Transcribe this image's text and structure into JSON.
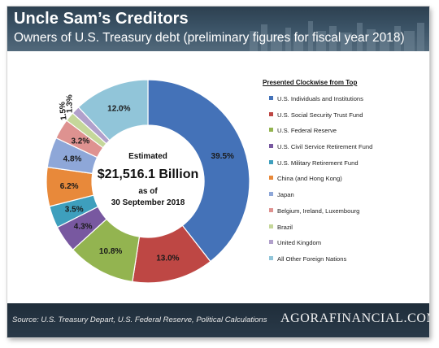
{
  "header": {
    "title": "Uncle Sam’s Creditors",
    "subtitle": "Owners of U.S. Treasury debt (preliminary figures for fiscal year 2018)"
  },
  "center": {
    "line1": "Estimated",
    "line2": "$21,516.1 Billion",
    "line3": "as of",
    "line4": "30 September 2018"
  },
  "legend": {
    "title": "Presented Clockwise from Top"
  },
  "footer": {
    "source": "Source: U.S. Treasury Depart, U.S. Federal Reserve, Political Calculations",
    "brand": "AGORAFINANCIAL.COM"
  },
  "chart_data": {
    "type": "pie",
    "title": "Uncle Sam’s Creditors",
    "subtitle": "Owners of U.S. Treasury debt (preliminary figures for fiscal year 2018)",
    "legend_position": "right",
    "categories": [
      "U.S. Individuals and Institutions",
      "U.S. Social Security Trust Fund",
      "U.S. Federal Reserve",
      "U.S. Civil Service Retirement Fund",
      "U.S. Military Retirement Fund",
      "China (and Hong Kong)",
      "Japan",
      "Belgium, Ireland, Luxembourg",
      "Brazil",
      "United Kingdom",
      "All Other Foreign Nations"
    ],
    "values": [
      39.5,
      13.0,
      10.8,
      4.3,
      3.5,
      6.2,
      4.8,
      3.2,
      1.5,
      1.3,
      12.0
    ],
    "labels": [
      "39.5%",
      "13.0%",
      "10.8%",
      "4.3%",
      "3.5%",
      "6.2%",
      "4.8%",
      "3.2%",
      "1.5%",
      "1.3%",
      "12.0%"
    ],
    "colors": [
      "#4472b8",
      "#be4744",
      "#93b450",
      "#7858a0",
      "#3e9fbd",
      "#e8893a",
      "#8ea7d8",
      "#de9290",
      "#c5d79a",
      "#b1a0cb",
      "#91c5d9"
    ]
  }
}
